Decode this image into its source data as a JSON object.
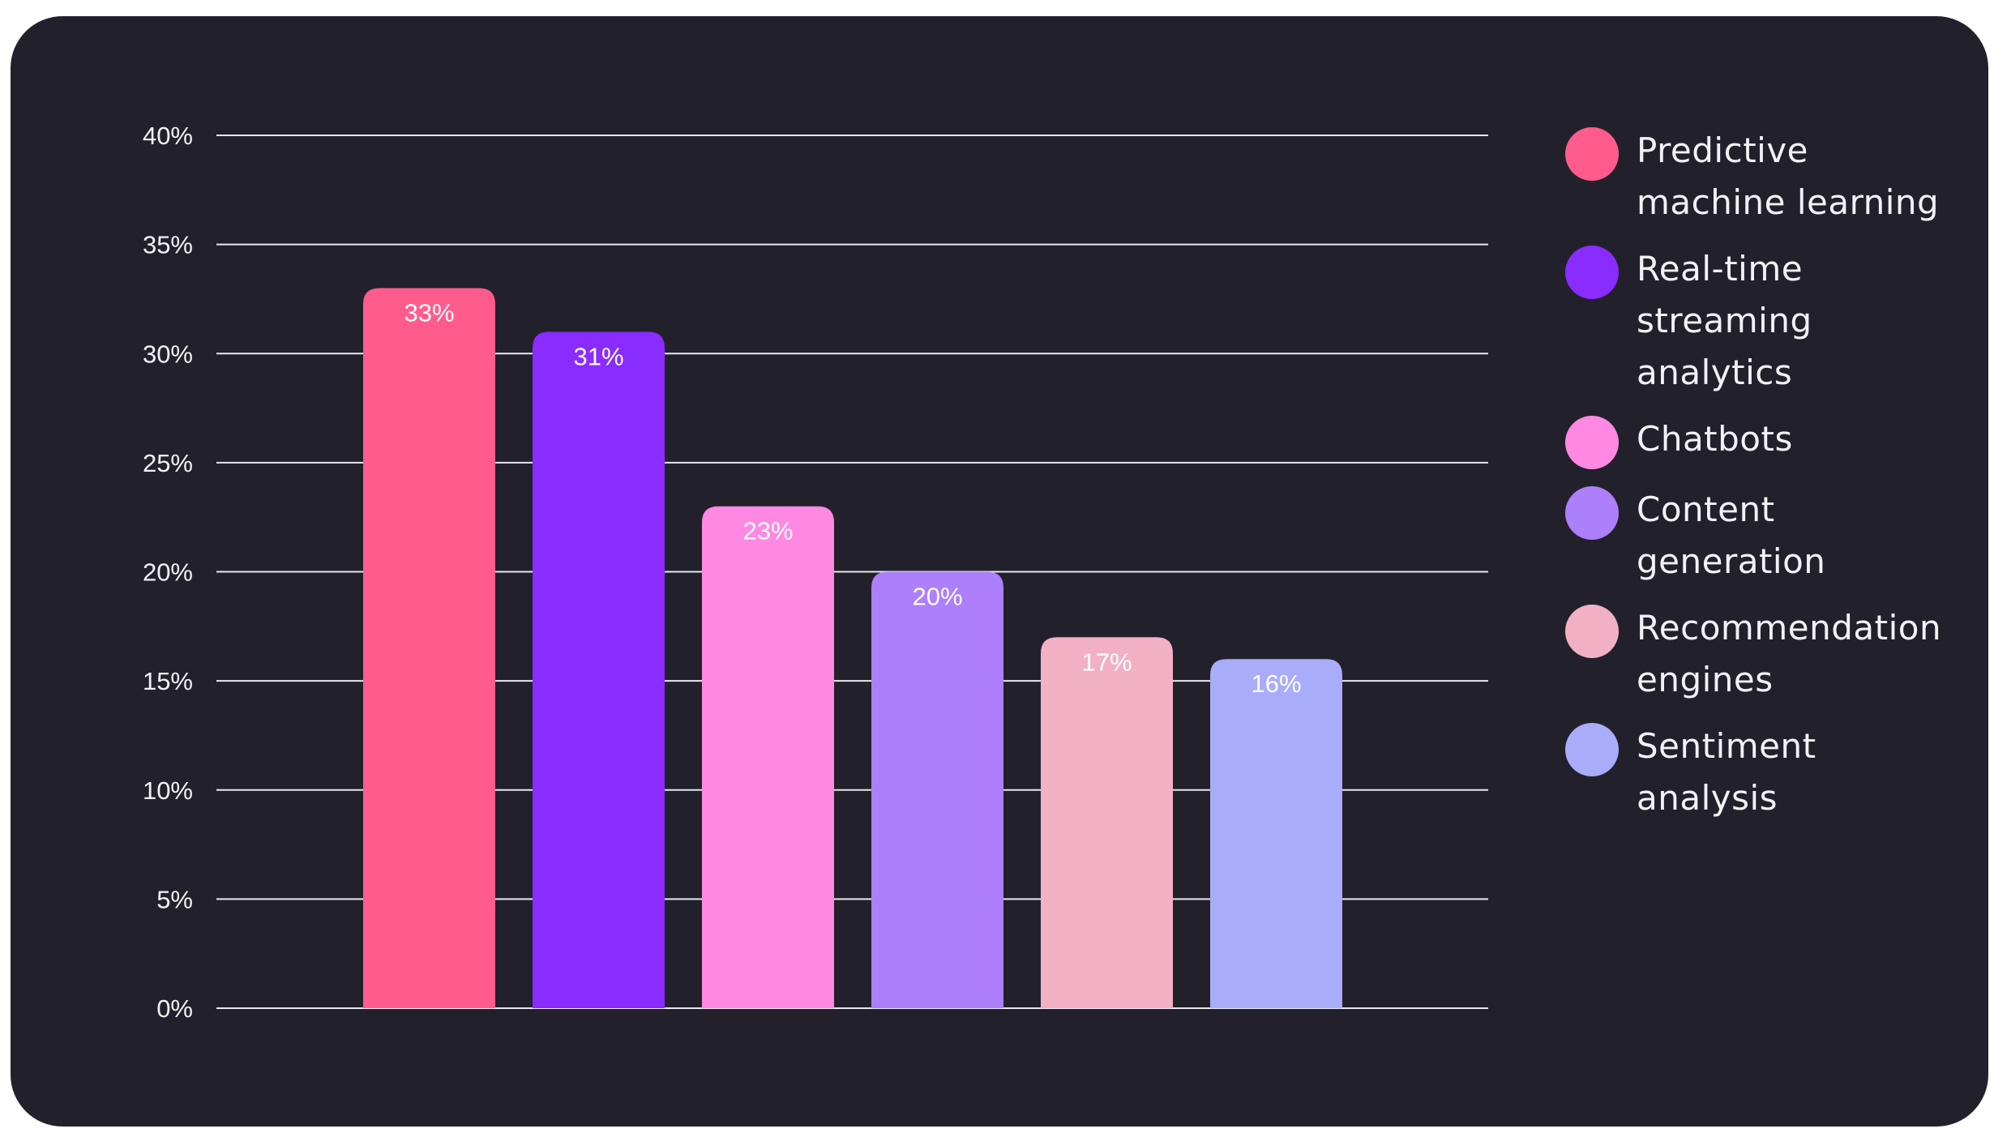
{
  "chart_data": {
    "type": "bar",
    "categories": [
      "Predictive machine learning",
      "Real-time streaming analytics",
      "Chatbots",
      "Content generation",
      "Recommendation engines",
      "Sentiment analysis"
    ],
    "values": [
      33,
      31,
      23,
      20,
      17,
      16
    ],
    "data_labels": [
      "33%",
      "31%",
      "23%",
      "20%",
      "17%",
      "16%"
    ],
    "colors": [
      "#ff5c8d",
      "#8a2bff",
      "#ff88e3",
      "#ad7ffa",
      "#f2b0c5",
      "#a9acf9"
    ],
    "ylim": [
      0,
      40
    ],
    "yticks": [
      0,
      5,
      10,
      15,
      20,
      25,
      30,
      35,
      40
    ],
    "ytick_labels": [
      "0%",
      "5%",
      "10%",
      "15%",
      "20%",
      "25%",
      "30%",
      "35%",
      "40%"
    ],
    "grid": true,
    "legend_position": "right",
    "legend_labels": [
      "Predictive\nmachine learning",
      "Real-time\nstreaming\nanalytics",
      "Chatbots",
      "Content\ngeneration",
      "Recommendation\nengines",
      "Sentiment\nanalysis"
    ],
    "title": "",
    "xlabel": "",
    "ylabel": ""
  }
}
